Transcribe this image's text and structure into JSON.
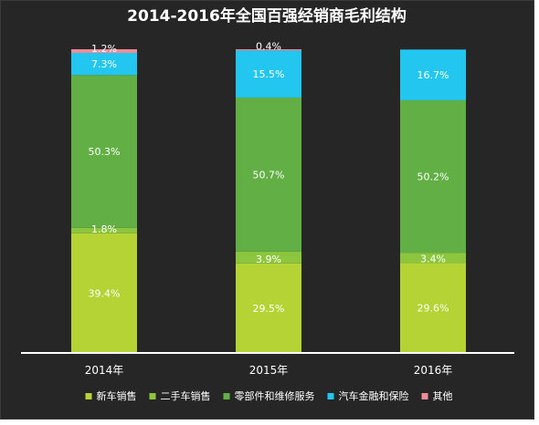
{
  "chart_data": {
    "type": "bar",
    "stacked": true,
    "title": "2014-2016年全国百强经销商毛利结构",
    "categories": [
      "2014年",
      "2015年",
      "2016年"
    ],
    "series": [
      {
        "name": "新车销售",
        "color": "#b5d334",
        "values": [
          39.4,
          29.5,
          29.6
        ],
        "labels": [
          "39.4%",
          "29.5%",
          "29.6%"
        ]
      },
      {
        "name": "二手车销售",
        "color": "#8cc63f",
        "values": [
          1.8,
          3.9,
          3.4
        ],
        "labels": [
          "1.8%",
          "3.9%",
          "3.4%"
        ]
      },
      {
        "name": "零部件和维修服务",
        "color": "#62b045",
        "values": [
          50.3,
          50.7,
          50.2
        ],
        "labels": [
          "50.3%",
          "50.7%",
          "50.2%"
        ]
      },
      {
        "name": "汽车金融和保险",
        "color": "#23c6ee",
        "values": [
          7.3,
          15.5,
          16.7
        ],
        "labels": [
          "7.3%",
          "15.5%",
          "16.7%"
        ]
      },
      {
        "name": "其他",
        "color": "#f08b98",
        "values": [
          1.2,
          0.4,
          0
        ],
        "labels": [
          "1.2%",
          "0.4%",
          ""
        ]
      }
    ],
    "ylim": [
      0,
      100
    ],
    "grid": false,
    "legend_position": "bottom"
  }
}
